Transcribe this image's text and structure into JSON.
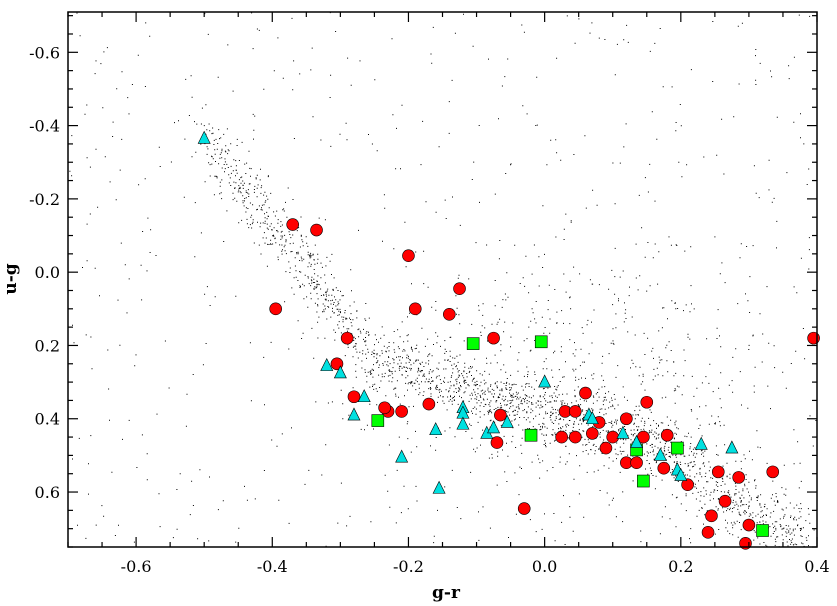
{
  "chart_data": {
    "type": "scatter",
    "title": "",
    "xlabel": "g-r",
    "ylabel": "u-g",
    "xlim": [
      -0.7,
      0.4
    ],
    "ylim": [
      0.75,
      -0.71
    ],
    "y_axis_inverted": true,
    "grid": false,
    "x_ticks": [
      -0.6,
      -0.4,
      -0.2,
      0.0,
      0.2,
      0.4
    ],
    "x_tick_labels": [
      "-0.6",
      "-0.4",
      "-0.2",
      "0.0",
      "0.2",
      "0.4"
    ],
    "y_ticks": [
      -0.6,
      -0.4,
      -0.2,
      0.0,
      0.2,
      0.4,
      0.6
    ],
    "y_tick_labels": [
      "-0.6",
      "-0.4",
      "-0.2",
      "0.0",
      "0.2",
      "0.4",
      "0.6"
    ],
    "background_points": {
      "marker": "dot",
      "color": "#000000",
      "description_count_estimate": 20000
    },
    "series": [
      {
        "marker": "circle",
        "color": "#ff0000",
        "points": [
          [
            -0.37,
            -0.13
          ],
          [
            -0.335,
            -0.115
          ],
          [
            -0.2,
            -0.045
          ],
          [
            -0.125,
            0.045
          ],
          [
            -0.395,
            0.1
          ],
          [
            -0.19,
            0.1
          ],
          [
            -0.14,
            0.115
          ],
          [
            -0.075,
            0.18
          ],
          [
            -0.29,
            0.18
          ],
          [
            -0.305,
            0.25
          ],
          [
            -0.28,
            0.34
          ],
          [
            -0.23,
            0.38
          ],
          [
            -0.235,
            0.37
          ],
          [
            -0.21,
            0.38
          ],
          [
            -0.17,
            0.36
          ],
          [
            -0.065,
            0.39
          ],
          [
            -0.07,
            0.465
          ],
          [
            0.03,
            0.38
          ],
          [
            0.045,
            0.38
          ],
          [
            0.06,
            0.33
          ],
          [
            0.025,
            0.45
          ],
          [
            0.045,
            0.45
          ],
          [
            0.07,
            0.44
          ],
          [
            0.08,
            0.41
          ],
          [
            0.09,
            0.48
          ],
          [
            0.1,
            0.45
          ],
          [
            0.12,
            0.4
          ],
          [
            0.12,
            0.52
          ],
          [
            0.135,
            0.52
          ],
          [
            0.15,
            0.355
          ],
          [
            0.145,
            0.45
          ],
          [
            0.18,
            0.445
          ],
          [
            0.175,
            0.535
          ],
          [
            0.21,
            0.58
          ],
          [
            0.255,
            0.545
          ],
          [
            0.285,
            0.56
          ],
          [
            0.335,
            0.545
          ],
          [
            0.265,
            0.625
          ],
          [
            0.245,
            0.665
          ],
          [
            0.24,
            0.71
          ],
          [
            0.3,
            0.69
          ],
          [
            0.295,
            0.74
          ],
          [
            -0.03,
            0.645
          ],
          [
            0.395,
            0.18
          ]
        ]
      },
      {
        "marker": "square",
        "color": "#00ff00",
        "points": [
          [
            -0.105,
            0.195
          ],
          [
            -0.005,
            0.19
          ],
          [
            -0.245,
            0.405
          ],
          [
            -0.02,
            0.445
          ],
          [
            0.135,
            0.485
          ],
          [
            0.195,
            0.48
          ],
          [
            0.145,
            0.57
          ],
          [
            0.32,
            0.705
          ]
        ]
      },
      {
        "marker": "triangle",
        "color": "#00e0e0",
        "points": [
          [
            -0.5,
            -0.365
          ],
          [
            -0.32,
            0.255
          ],
          [
            -0.3,
            0.275
          ],
          [
            -0.265,
            0.34
          ],
          [
            -0.28,
            0.39
          ],
          [
            -0.21,
            0.505
          ],
          [
            -0.155,
            0.59
          ],
          [
            -0.16,
            0.43
          ],
          [
            -0.12,
            0.37
          ],
          [
            -0.12,
            0.385
          ],
          [
            -0.12,
            0.415
          ],
          [
            -0.085,
            0.44
          ],
          [
            -0.075,
            0.425
          ],
          [
            -0.055,
            0.41
          ],
          [
            0.0,
            0.3
          ],
          [
            0.065,
            0.39
          ],
          [
            0.07,
            0.4
          ],
          [
            0.115,
            0.44
          ],
          [
            0.135,
            0.465
          ],
          [
            0.17,
            0.5
          ],
          [
            0.23,
            0.47
          ],
          [
            0.275,
            0.48
          ],
          [
            0.195,
            0.54
          ],
          [
            0.2,
            0.555
          ]
        ]
      }
    ]
  }
}
